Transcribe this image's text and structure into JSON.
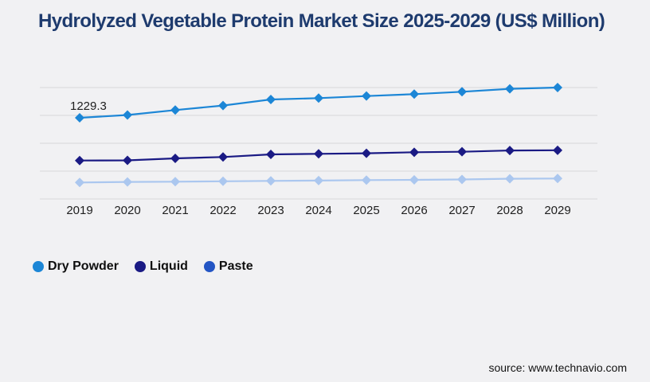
{
  "chart_data": {
    "type": "line",
    "title": "Hydrolyzed Vegetable Protein Market Size 2025-2029 (US$ Million)",
    "xlabel": "",
    "ylabel": "US$ Million",
    "categories": [
      "2019",
      "2020",
      "2021",
      "2022",
      "2023",
      "2024",
      "2025",
      "2026",
      "2027",
      "2028",
      "2029"
    ],
    "series": [
      {
        "name": "Dry Powder",
        "color": "#1c86d6",
        "marker": "diamond",
        "values": [
          1229.3,
          1271,
          1346,
          1414,
          1506,
          1527,
          1558,
          1587,
          1623,
          1667,
          1687
        ]
      },
      {
        "name": "Liquid",
        "color": "#1a1a84",
        "marker": "diamond",
        "values": [
          582,
          584,
          615,
          635,
          675,
          683,
          691,
          707,
          715,
          734,
          737
        ]
      },
      {
        "name": "Paste",
        "color": "#2355c4",
        "line_color": "#abc7ef",
        "marker": "diamond",
        "values": [
          250,
          258,
          262,
          268,
          274,
          278,
          285,
          289,
          295,
          306,
          310
        ]
      }
    ],
    "point_label": {
      "series": "Dry Powder",
      "category": "2019",
      "text": "1229.3"
    },
    "ylim": [
      0,
      1700
    ],
    "grid": true,
    "gridlines": "horizontal",
    "legend_position": "bottom-left"
  },
  "footer": {
    "source": "source: www.technavio.com"
  },
  "colors": {
    "background": "#f1f1f3",
    "title": "#1e3b6e",
    "gridline": "#d7d7d9",
    "axis_text": "#1e1e1e",
    "point_label_text": "#1e1e1e"
  }
}
